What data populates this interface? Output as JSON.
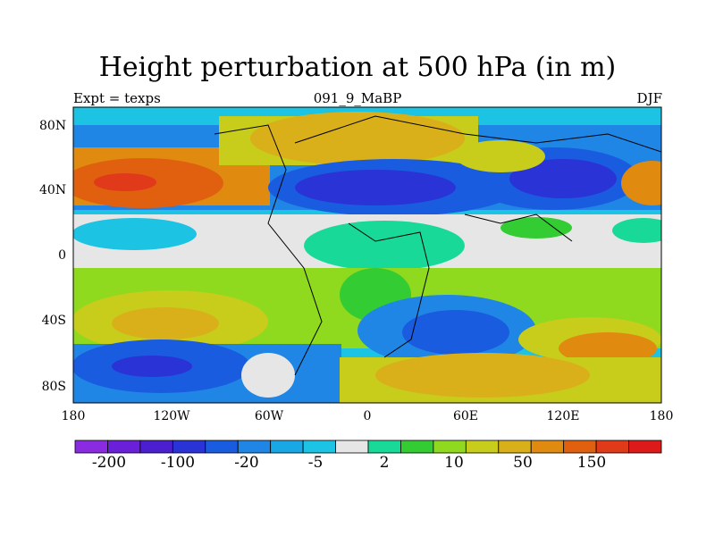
{
  "title": "Height perturbation at 500 hPa (in m)",
  "left_label": "Expt = texps",
  "center_label": "091_9_MaBP",
  "right_label": "DJF",
  "y_ticks": [
    "80N",
    "40N",
    "0",
    "40S",
    "80S"
  ],
  "x_ticks": [
    "180",
    "120W",
    "60W",
    "0",
    "60E",
    "120E",
    "180"
  ],
  "colorbar": {
    "colors": [
      "#8a2be2",
      "#6a1fd8",
      "#4b1fcf",
      "#2a33d6",
      "#1a5ce0",
      "#1f86e6",
      "#19a7e6",
      "#1cc3e3",
      "#e6e6e6",
      "#19d999",
      "#33cc33",
      "#8fd91f",
      "#c8cc1a",
      "#d9b01a",
      "#e08a10",
      "#e06010",
      "#e03a1a",
      "#dd1a1a"
    ],
    "labels": [
      "-200",
      "-100",
      "-20",
      "-5",
      "2",
      "10",
      "50",
      "150"
    ]
  }
}
